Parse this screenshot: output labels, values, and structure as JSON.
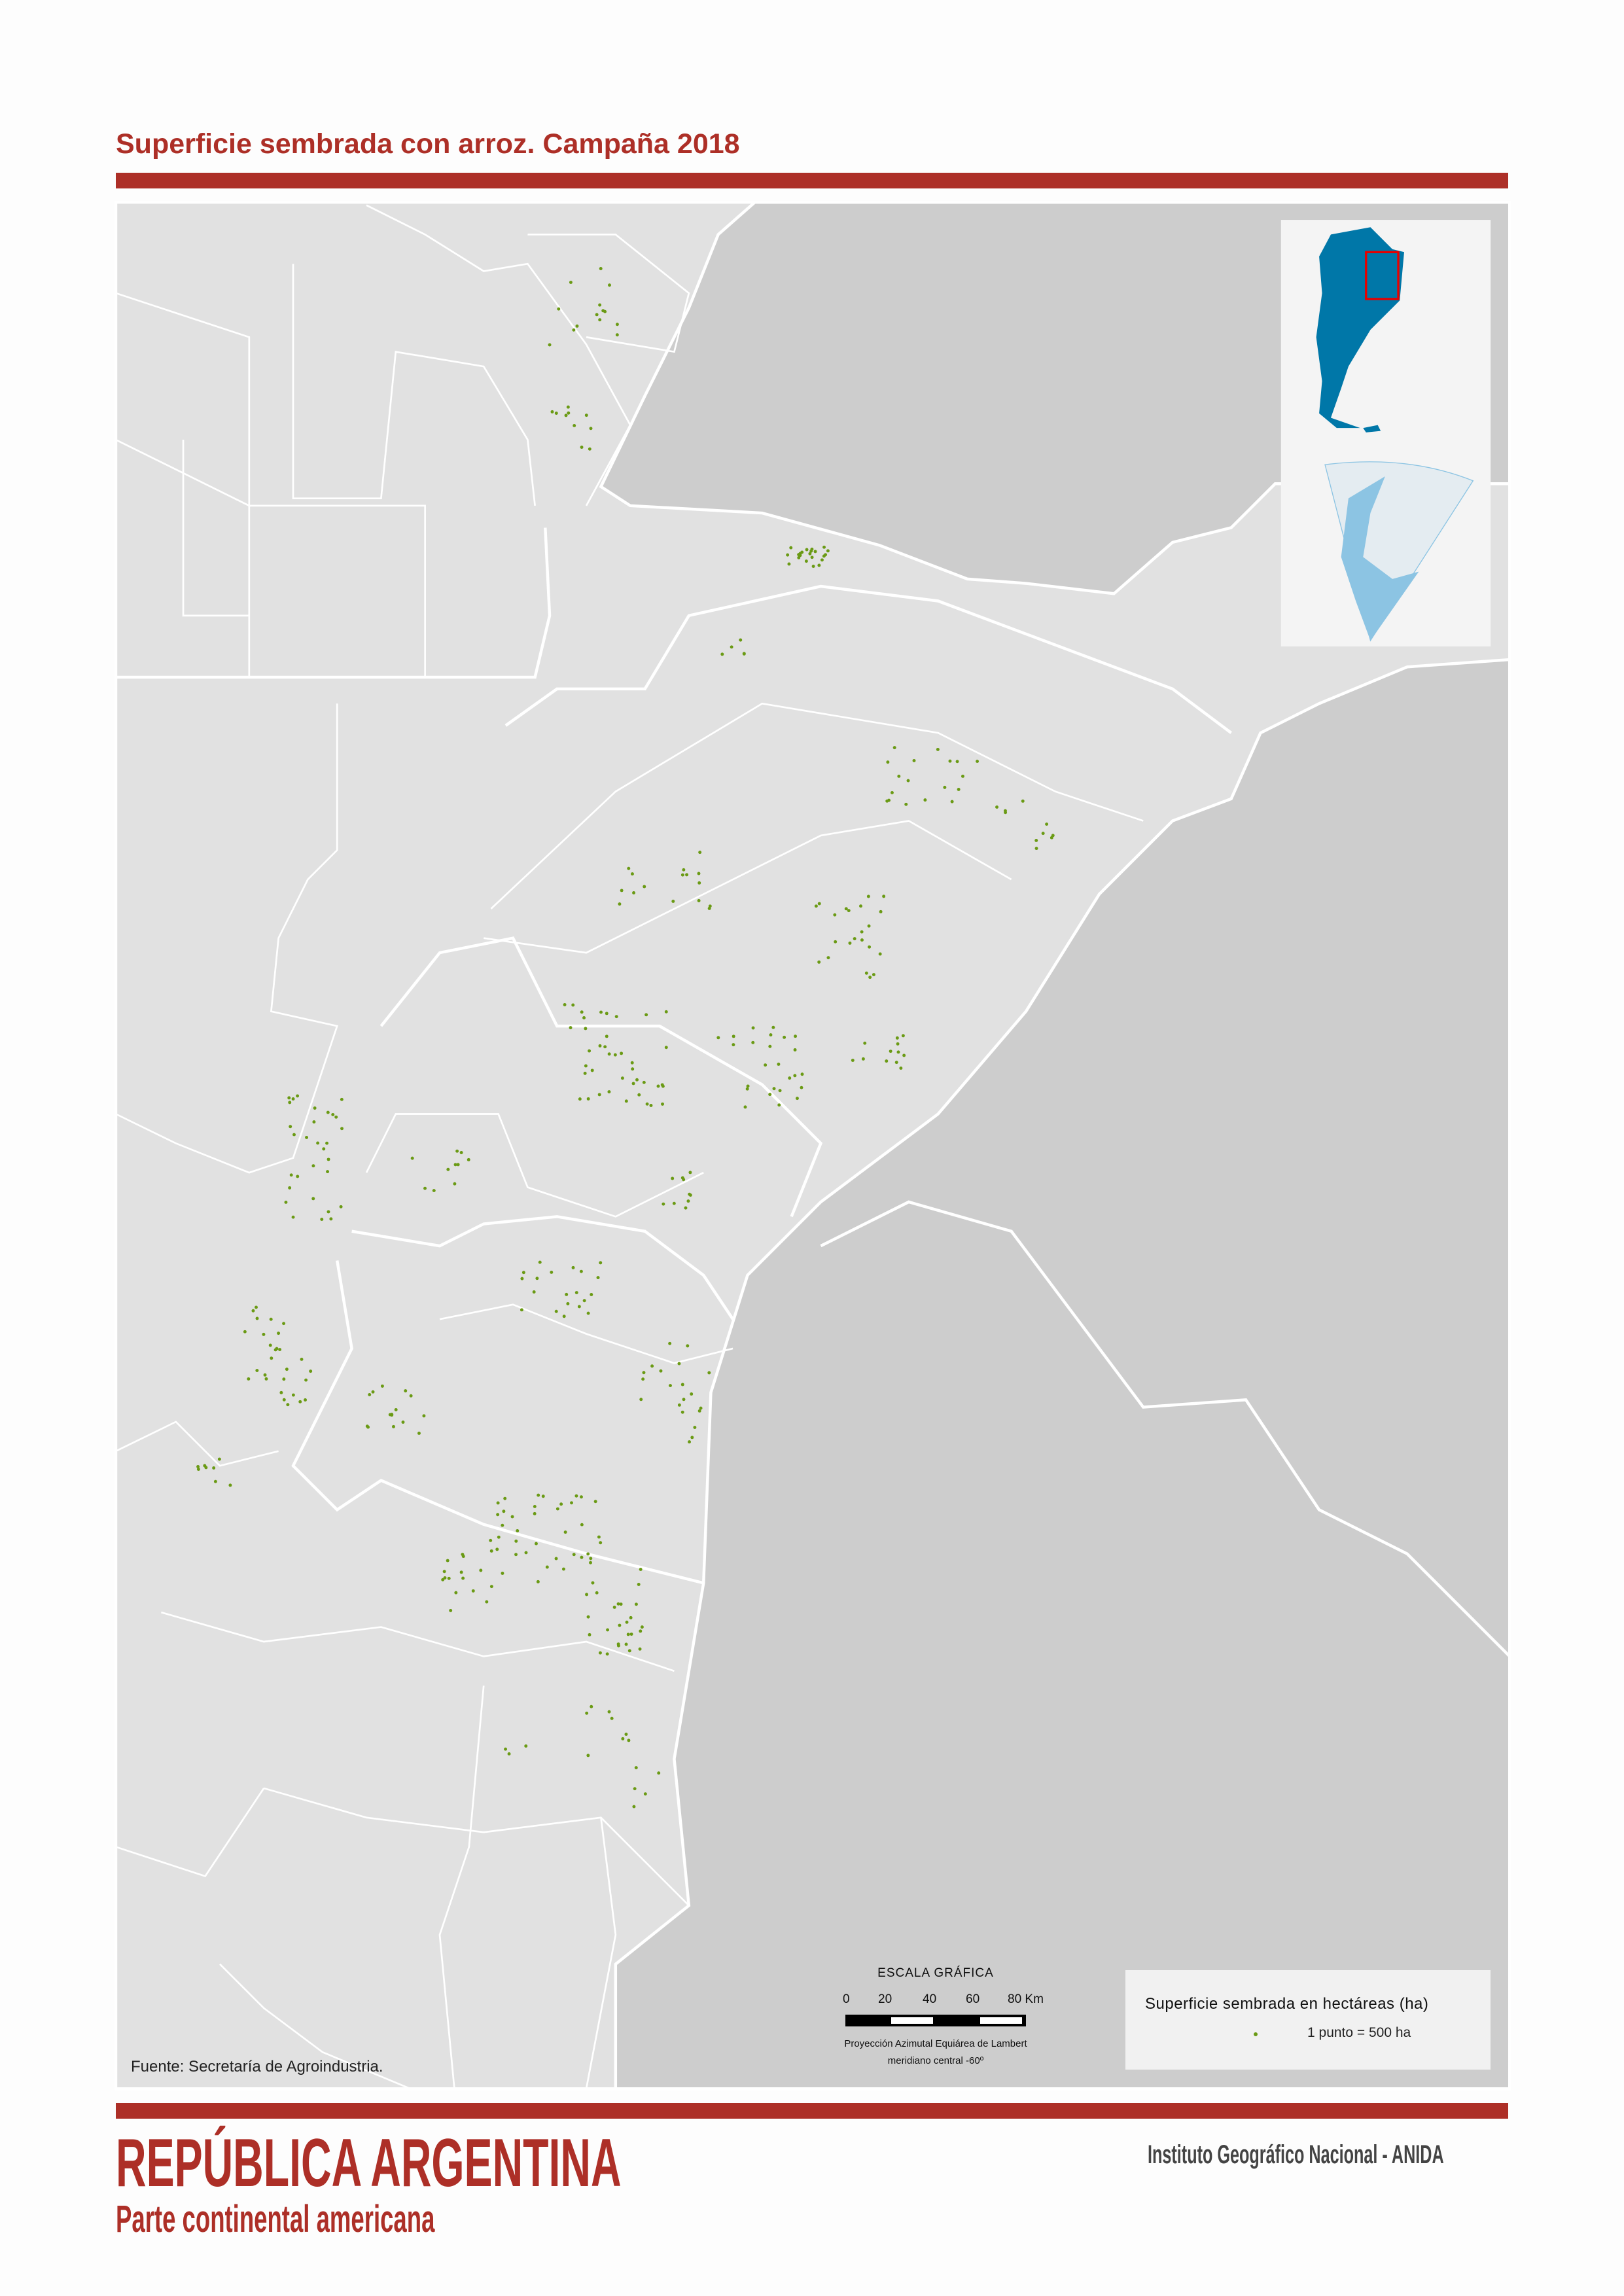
{
  "header": {
    "title": "Superficie sembrada con arroz. Campaña 2018"
  },
  "map": {
    "colors": {
      "argentina_land": "#e1e1e1",
      "neighbor_water": "#cdcdcd",
      "borders": "#ffffff",
      "dots": "#6a9a14",
      "inset_country": "#0077a8",
      "inset_antarctica": "#8cc4e3",
      "inset_frame": "#e60000"
    },
    "source": "Fuente: Secretaría de Agroindustria."
  },
  "scale": {
    "title": "ESCALA GRÁFICA",
    "ticks": [
      "0",
      "20",
      "40",
      "60",
      "80 Km"
    ],
    "projection": "Proyección Azimutal Equiárea de Lambert",
    "meridian": "meridiano central -60º"
  },
  "legend": {
    "title": "Superficie sembrada en hectáreas (ha)",
    "item": "1 punto = 500 ha"
  },
  "footer": {
    "title": "REPÚBLICA ARGENTINA",
    "subtitle": "Parte continental americana",
    "institution": "Instituto Geográfico Nacional - ANIDA"
  }
}
